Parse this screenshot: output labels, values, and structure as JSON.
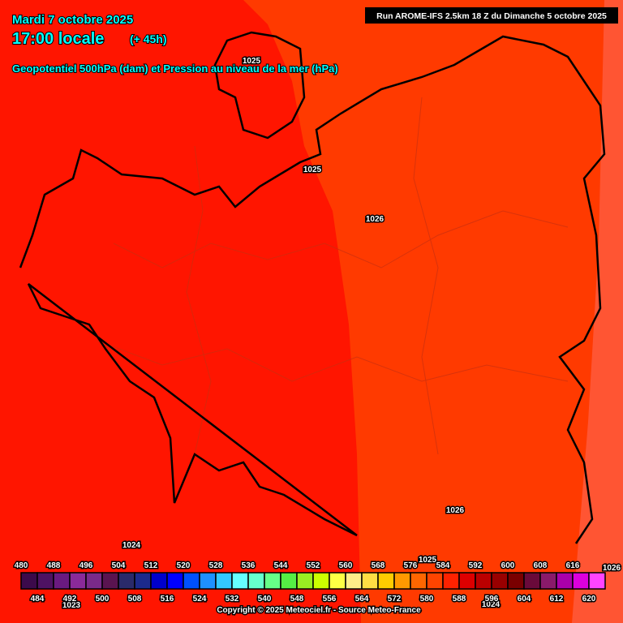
{
  "header": {
    "date": "Mardi 7 octobre 2025",
    "time": "17:00 locale",
    "lead": "(+ 45h)",
    "parameter": "Geopotentiel 500hPa (dam) et Pression au niveau de la mer (hPa)",
    "run": "Run AROME-IFS 2.5km 18 Z du Dimanche 5 octobre 2025"
  },
  "isobar_labels": [
    1025,
    1025,
    1026,
    1026,
    1024,
    1025,
    1026,
    1023,
    1024
  ],
  "colorbar": {
    "values": [
      480,
      484,
      488,
      492,
      496,
      500,
      504,
      508,
      512,
      516,
      520,
      524,
      528,
      532,
      536,
      540,
      544,
      548,
      552,
      556,
      560,
      564,
      568,
      572,
      576,
      580,
      584,
      588,
      592,
      596,
      600,
      604,
      608,
      612,
      616,
      620
    ],
    "colors": [
      "#3c0a4b",
      "#4e1262",
      "#6a1a80",
      "#8a2a9a",
      "#7a2a8a",
      "#5a1450",
      "#2a2a6a",
      "#1c2a8c",
      "#0000cc",
      "#0000ff",
      "#0050ff",
      "#1e90ff",
      "#33c8ff",
      "#66ffff",
      "#66ffcc",
      "#66ff88",
      "#55ee44",
      "#99ee22",
      "#ccff00",
      "#ffff44",
      "#ffee88",
      "#ffdd44",
      "#ffcc00",
      "#ff9900",
      "#ff6600",
      "#ff4400",
      "#ff2200",
      "#dd0000",
      "#bb0000",
      "#990000",
      "#7a0000",
      "#6a0a3a",
      "#8a1a6a",
      "#aa00aa",
      "#dd00dd",
      "#ff44ff"
    ]
  },
  "footer": {
    "copyright": "Copyright © 2025 Meteociel.fr - Source Meteo-France"
  }
}
